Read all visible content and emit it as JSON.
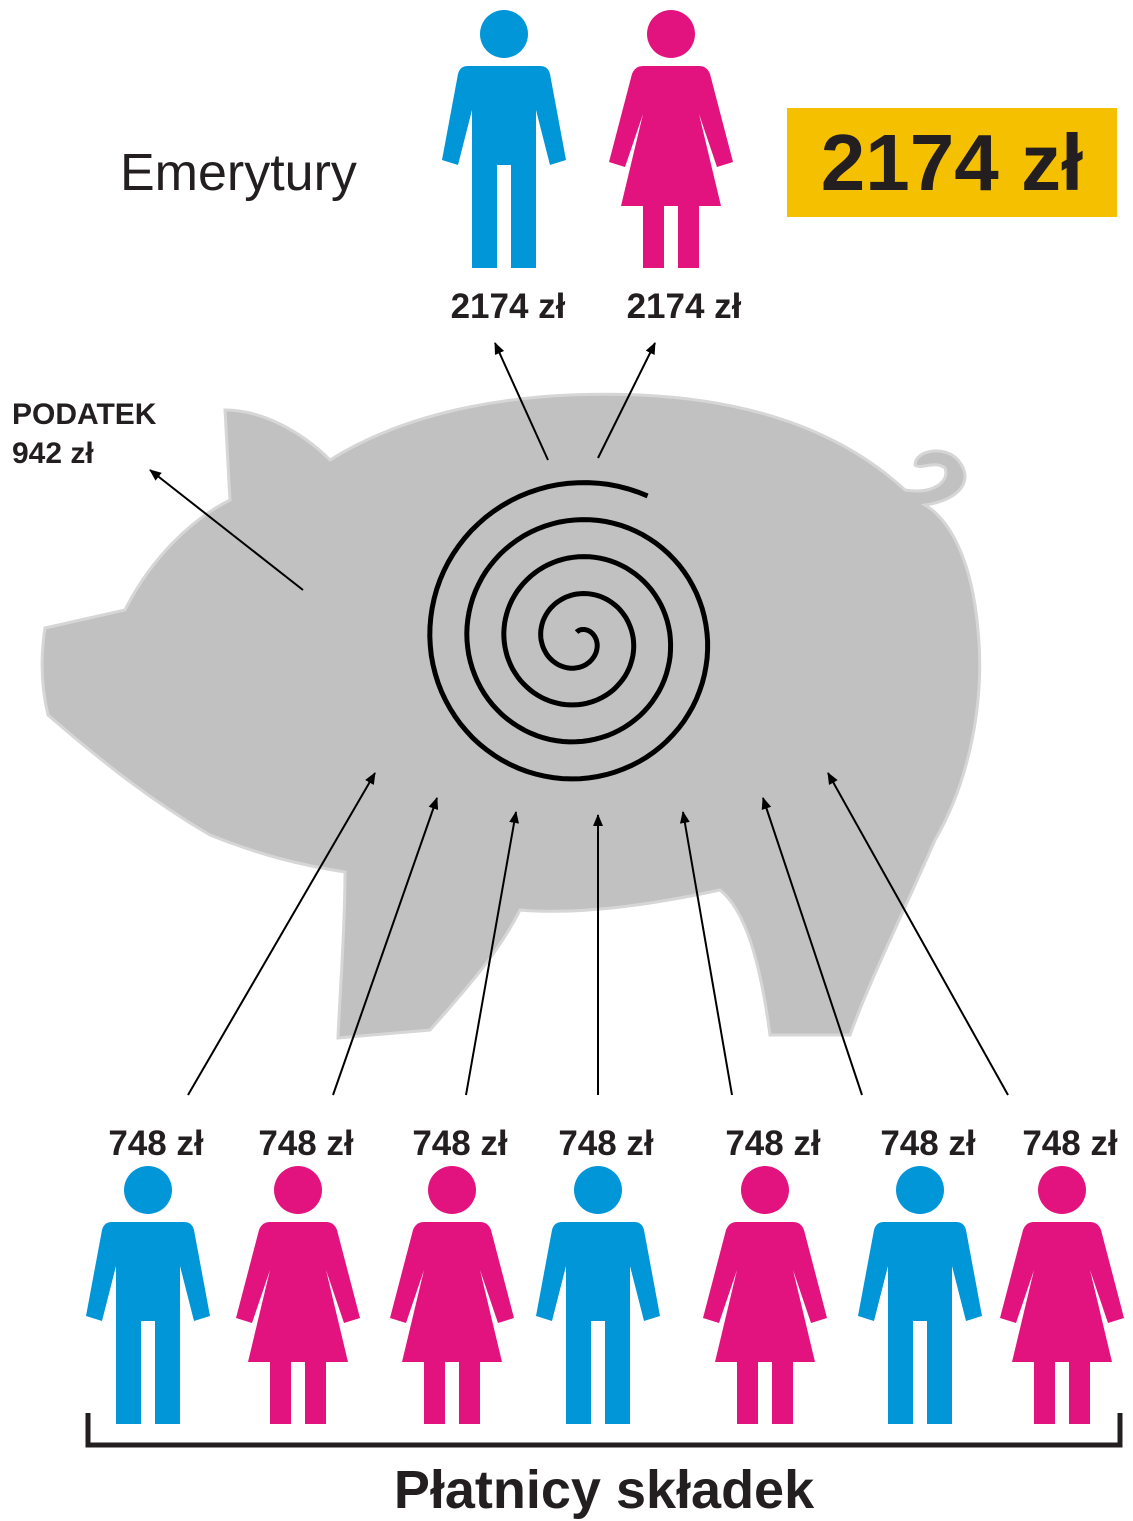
{
  "title": "Emerytury",
  "highlight": "2174 zł",
  "retirees": [
    "2174 zł",
    "2174 zł"
  ],
  "tax": {
    "label": "PODATEK",
    "amount": "942 zł"
  },
  "payers": [
    "748 zł",
    "748 zł",
    "748 zł",
    "748 zł",
    "748 zł",
    "748 zł",
    "748 zł"
  ],
  "footer": "Płatnicy składek"
}
